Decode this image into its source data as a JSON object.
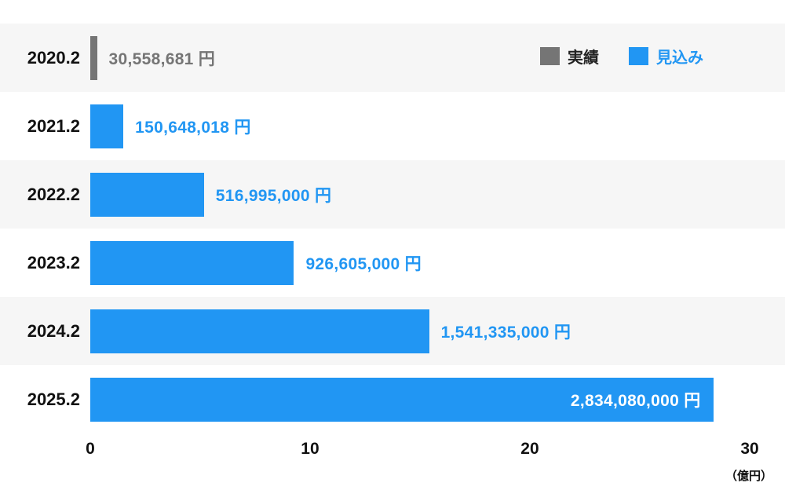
{
  "chart_data": {
    "type": "bar",
    "orientation": "horizontal",
    "title": "",
    "xlabel": "（億円）",
    "xlim": [
      0,
      30
    ],
    "x_ticks": [
      0,
      10,
      20,
      30
    ],
    "unit_divisor": 100000000,
    "grid": false,
    "legend_position": "top-right",
    "categories": [
      "2020.2",
      "2021.2",
      "2022.2",
      "2023.2",
      "2024.2",
      "2025.2"
    ],
    "rows": [
      {
        "category": "2020.2",
        "value_yen": 30558681,
        "label": "30,558,681 円",
        "series": "実績",
        "label_position": "outside"
      },
      {
        "category": "2021.2",
        "value_yen": 150648018,
        "label": "150,648,018 円",
        "series": "見込み",
        "label_position": "outside"
      },
      {
        "category": "2022.2",
        "value_yen": 516995000,
        "label": "516,995,000 円",
        "series": "見込み",
        "label_position": "outside"
      },
      {
        "category": "2023.2",
        "value_yen": 926605000,
        "label": "926,605,000 円",
        "series": "見込み",
        "label_position": "outside"
      },
      {
        "category": "2024.2",
        "value_yen": 1541335000,
        "label": "1,541,335,000 円",
        "series": "見込み",
        "label_position": "outside"
      },
      {
        "category": "2025.2",
        "value_yen": 2834080000,
        "label": "2,834,080,000 円",
        "series": "見込み",
        "label_position": "inside"
      }
    ],
    "legend": [
      {
        "label": "実績",
        "color": "#757575",
        "text_color": "#222222"
      },
      {
        "label": "見込み",
        "color": "#2196f3",
        "text_color": "#2196f3"
      }
    ],
    "series_colors": {
      "実績": "#757575",
      "見込み": "#2196f3"
    },
    "inside_label_color": "#ffffff",
    "row_stripe_color": "#f6f6f6",
    "text_color": "#111111",
    "background_color": "#ffffff"
  }
}
